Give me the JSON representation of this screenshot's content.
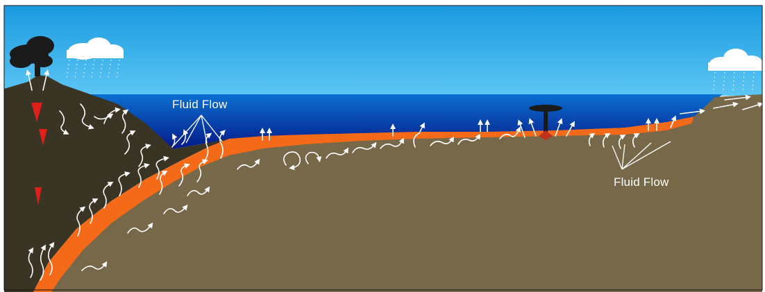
{
  "diagram": {
    "labels": {
      "fluid_flow_left": "Fluid Flow",
      "fluid_flow_right": "Fluid Flow"
    },
    "colors": {
      "sky_top": "#1a9ae0",
      "sky_bottom": "#5cc6f4",
      "ocean_top": "#0a6fd0",
      "ocean_bottom": "#041a88",
      "seafloor": "#766848",
      "continent": "#3a3424",
      "subducting_plate": "#f46a18",
      "magma": "#e02018",
      "ash_cloud": "#1a1a1a",
      "cloud": "#ffffff",
      "arrows": "#ffffff"
    },
    "icons": [
      "volcano-icon",
      "ash-cloud-icon",
      "rain-cloud-icon",
      "hydrothermal-plume-icon"
    ]
  }
}
